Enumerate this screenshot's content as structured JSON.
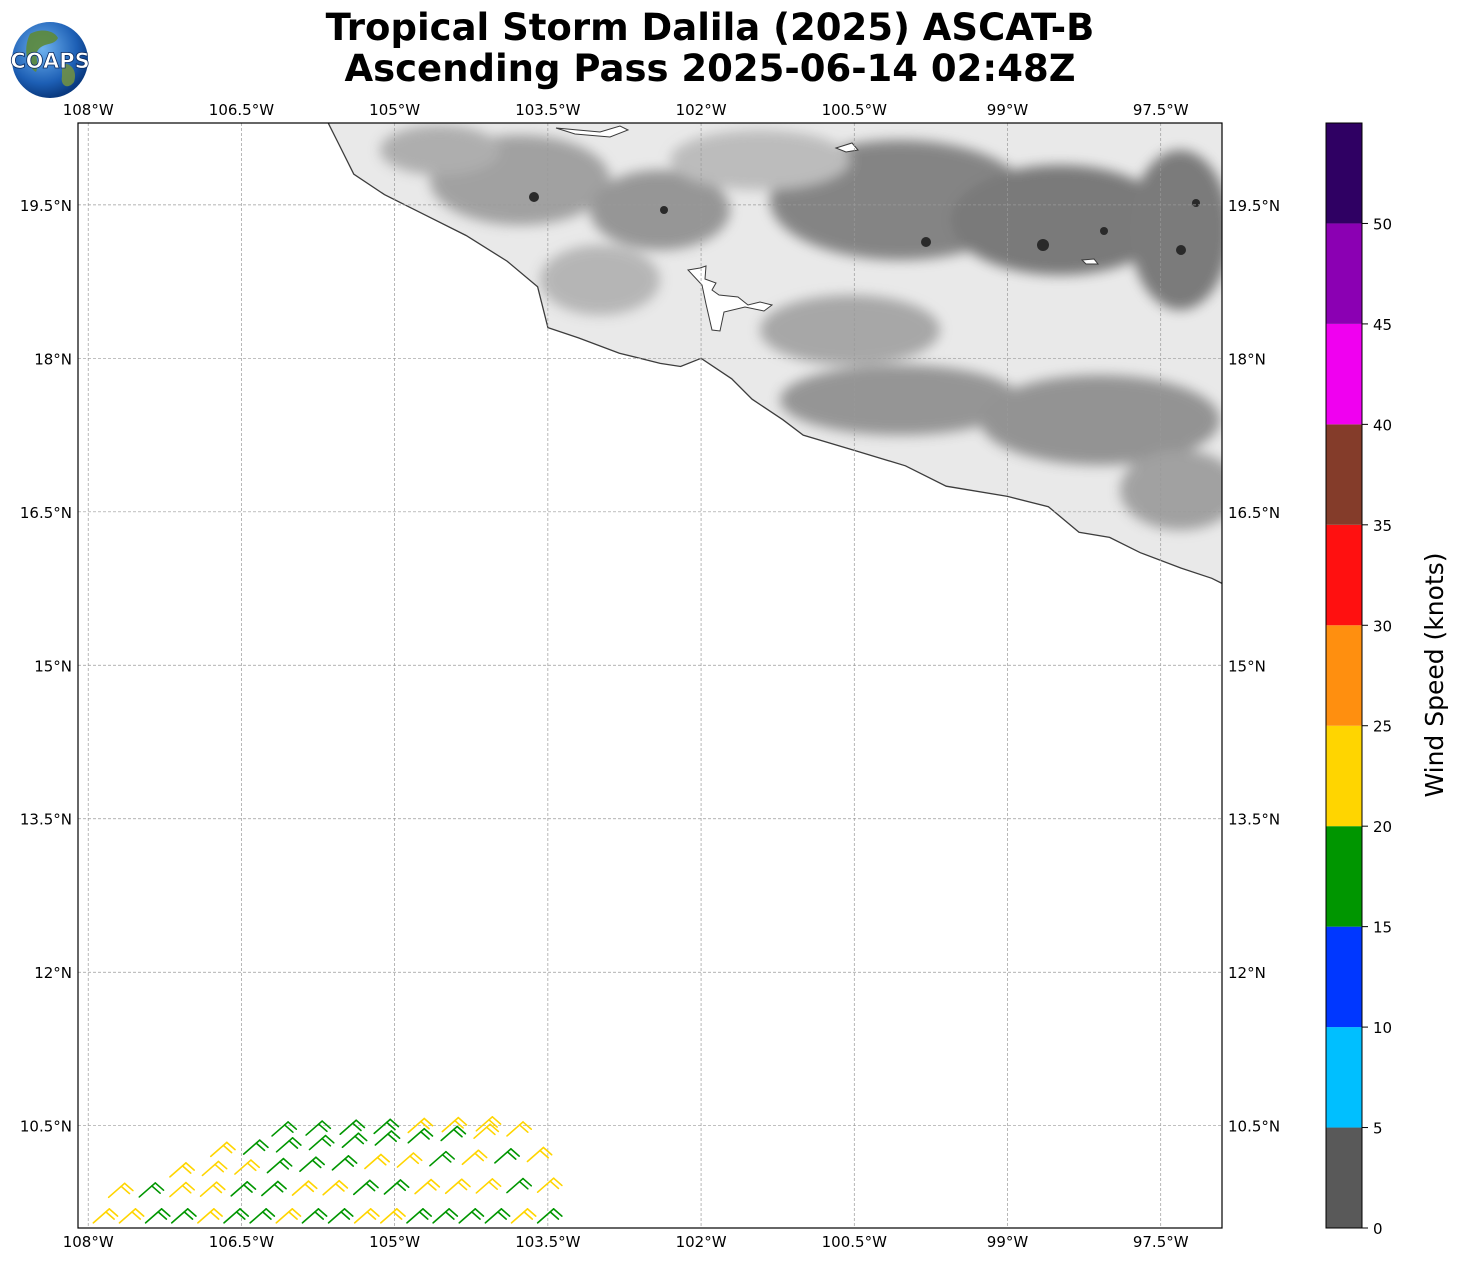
{
  "header": {
    "title_line_1": "Tropical Storm Dalila (2025) ASCAT-B",
    "title_line_2": "Ascending Pass 2025-06-14 02:48Z",
    "logo_text": "COAPS"
  },
  "map": {
    "lon_labels": [
      "108°W",
      "106.5°W",
      "105°W",
      "103.5°W",
      "102°W",
      "100.5°W",
      "99°W",
      "97.5°W"
    ],
    "lat_labels": [
      "19.5°N",
      "18°N",
      "16.5°N",
      "15°N",
      "13.5°N",
      "12°N",
      "10.5°N"
    ],
    "lon_range": [
      -108.1,
      -96.9
    ],
    "lat_range": [
      9.5,
      20.3
    ],
    "grid": true,
    "coastline_lonlat": [
      [
        -105.65,
        20.3
      ],
      [
        -105.55,
        20.1
      ],
      [
        -105.4,
        19.8
      ],
      [
        -105.1,
        19.6
      ],
      [
        -104.7,
        19.4
      ],
      [
        -104.3,
        19.2
      ],
      [
        -103.9,
        18.95
      ],
      [
        -103.6,
        18.7
      ],
      [
        -103.5,
        18.3
      ],
      [
        -103.2,
        18.2
      ],
      [
        -102.8,
        18.05
      ],
      [
        -102.4,
        17.95
      ],
      [
        -102.2,
        17.92
      ],
      [
        -102.0,
        18.0
      ],
      [
        -101.7,
        17.8
      ],
      [
        -101.5,
        17.6
      ],
      [
        -101.2,
        17.4
      ],
      [
        -101.0,
        17.25
      ],
      [
        -100.5,
        17.1
      ],
      [
        -100.0,
        16.95
      ],
      [
        -99.6,
        16.75
      ],
      [
        -99.0,
        16.65
      ],
      [
        -98.6,
        16.55
      ],
      [
        -98.3,
        16.3
      ],
      [
        -98.0,
        16.25
      ],
      [
        -97.7,
        16.1
      ],
      [
        -97.3,
        15.95
      ],
      [
        -97.0,
        15.85
      ],
      [
        -96.9,
        15.8
      ]
    ],
    "wind_speed_units": "knots"
  },
  "wind_barbs": {
    "note_units": "knots",
    "rows": [
      {
        "start": [
          -107.95,
          9.55
        ],
        "end": [
          -103.6,
          9.55
        ],
        "speeds": [
          22,
          22,
          18,
          18,
          22,
          18,
          18,
          22,
          18,
          18,
          22,
          22,
          18,
          18,
          18,
          18,
          22,
          18
        ]
      },
      {
        "start": [
          -107.8,
          9.8
        ],
        "end": [
          -103.6,
          9.85
        ],
        "speeds": [
          22,
          18,
          22,
          22,
          18,
          18,
          22,
          22,
          18,
          18,
          22,
          22,
          22,
          18,
          22
        ]
      },
      {
        "start": [
          -107.2,
          10.0
        ],
        "end": [
          -103.7,
          10.15
        ],
        "speeds": [
          22,
          22,
          22,
          18,
          18,
          18,
          22,
          22,
          18,
          22,
          18,
          22
        ]
      },
      {
        "start": [
          -106.8,
          10.2
        ],
        "end": [
          -103.9,
          10.4
        ],
        "speeds": [
          22,
          18,
          18,
          18,
          18,
          18,
          18,
          18,
          22,
          22
        ]
      },
      {
        "start": [
          -106.2,
          10.4
        ],
        "end": [
          -104.2,
          10.45
        ],
        "speeds": [
          18,
          18,
          18,
          18,
          22,
          22,
          22
        ]
      }
    ]
  },
  "colorbar": {
    "label": "Wind Speed (knots)",
    "ticks": [
      "0",
      "5",
      "10",
      "15",
      "20",
      "25",
      "30",
      "35",
      "40",
      "45",
      "50"
    ],
    "bins": [
      {
        "min": 0,
        "max": 5,
        "color": "#595959"
      },
      {
        "min": 5,
        "max": 10,
        "color": "#00bfff"
      },
      {
        "min": 10,
        "max": 15,
        "color": "#0037ff"
      },
      {
        "min": 15,
        "max": 20,
        "color": "#009600"
      },
      {
        "min": 20,
        "max": 25,
        "color": "#ffd500"
      },
      {
        "min": 25,
        "max": 30,
        "color": "#ff8f0f"
      },
      {
        "min": 30,
        "max": 35,
        "color": "#ff1010"
      },
      {
        "min": 35,
        "max": 40,
        "color": "#843c2a"
      },
      {
        "min": 40,
        "max": 45,
        "color": "#f000f0"
      },
      {
        "min": 45,
        "max": 50,
        "color": "#8b00b3"
      },
      {
        "min": 50,
        "max": 55,
        "color": "#2f0063"
      }
    ]
  }
}
